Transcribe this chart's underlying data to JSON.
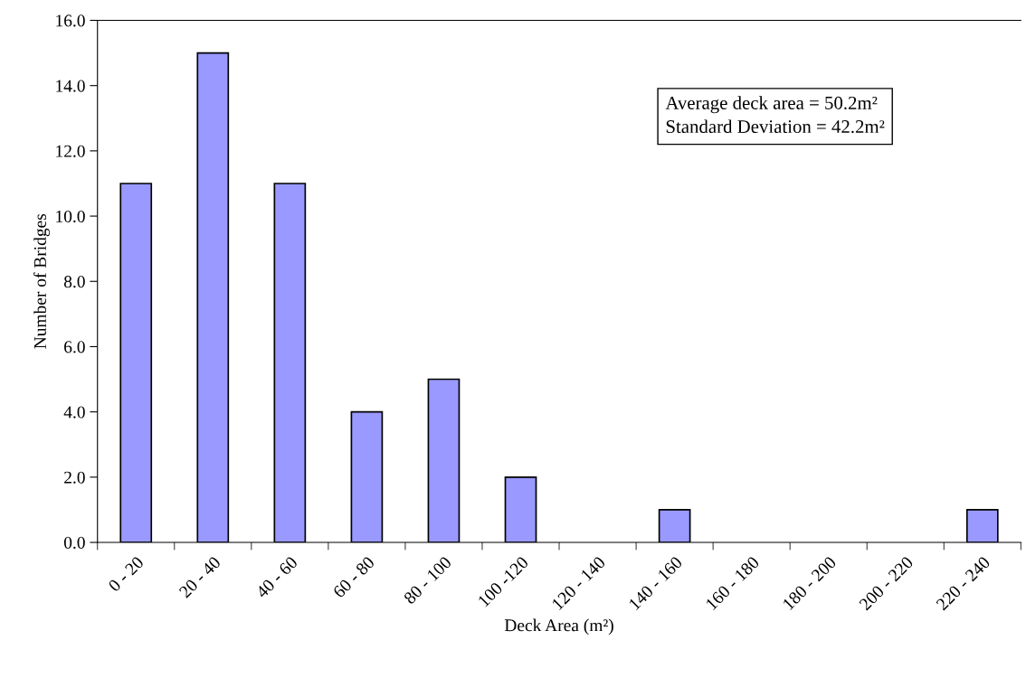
{
  "chart_data": {
    "type": "bar",
    "xlabel": "Deck Area (m²)",
    "ylabel": "Number of Bridges",
    "categories": [
      "0 - 20",
      "20 - 40",
      "40 - 60",
      "60 - 80",
      "80 - 100",
      "100 -120",
      "120 - 140",
      "140 - 160",
      "160 - 180",
      "180 - 200",
      "200 - 220",
      "220 - 240"
    ],
    "values": [
      11,
      15,
      11,
      4,
      5,
      2,
      0,
      1,
      0,
      0,
      0,
      1
    ],
    "color": "#9999ff",
    "ylim": [
      0,
      16
    ],
    "yticks": [
      {
        "value": 0,
        "label": "0.0"
      },
      {
        "value": 2,
        "label": "2.0"
      },
      {
        "value": 4,
        "label": "4.0"
      },
      {
        "value": 6,
        "label": "6.0"
      },
      {
        "value": 8,
        "label": "8.0"
      },
      {
        "value": 10,
        "label": "10.0"
      },
      {
        "value": 12,
        "label": "12.0"
      },
      {
        "value": 14,
        "label": "14.0"
      },
      {
        "value": 16,
        "label": "16.0"
      }
    ],
    "annotations": [
      "Average deck area = 50.2m²",
      "Standard Deviation = 42.2m²"
    ],
    "grid": false,
    "legend": false
  }
}
